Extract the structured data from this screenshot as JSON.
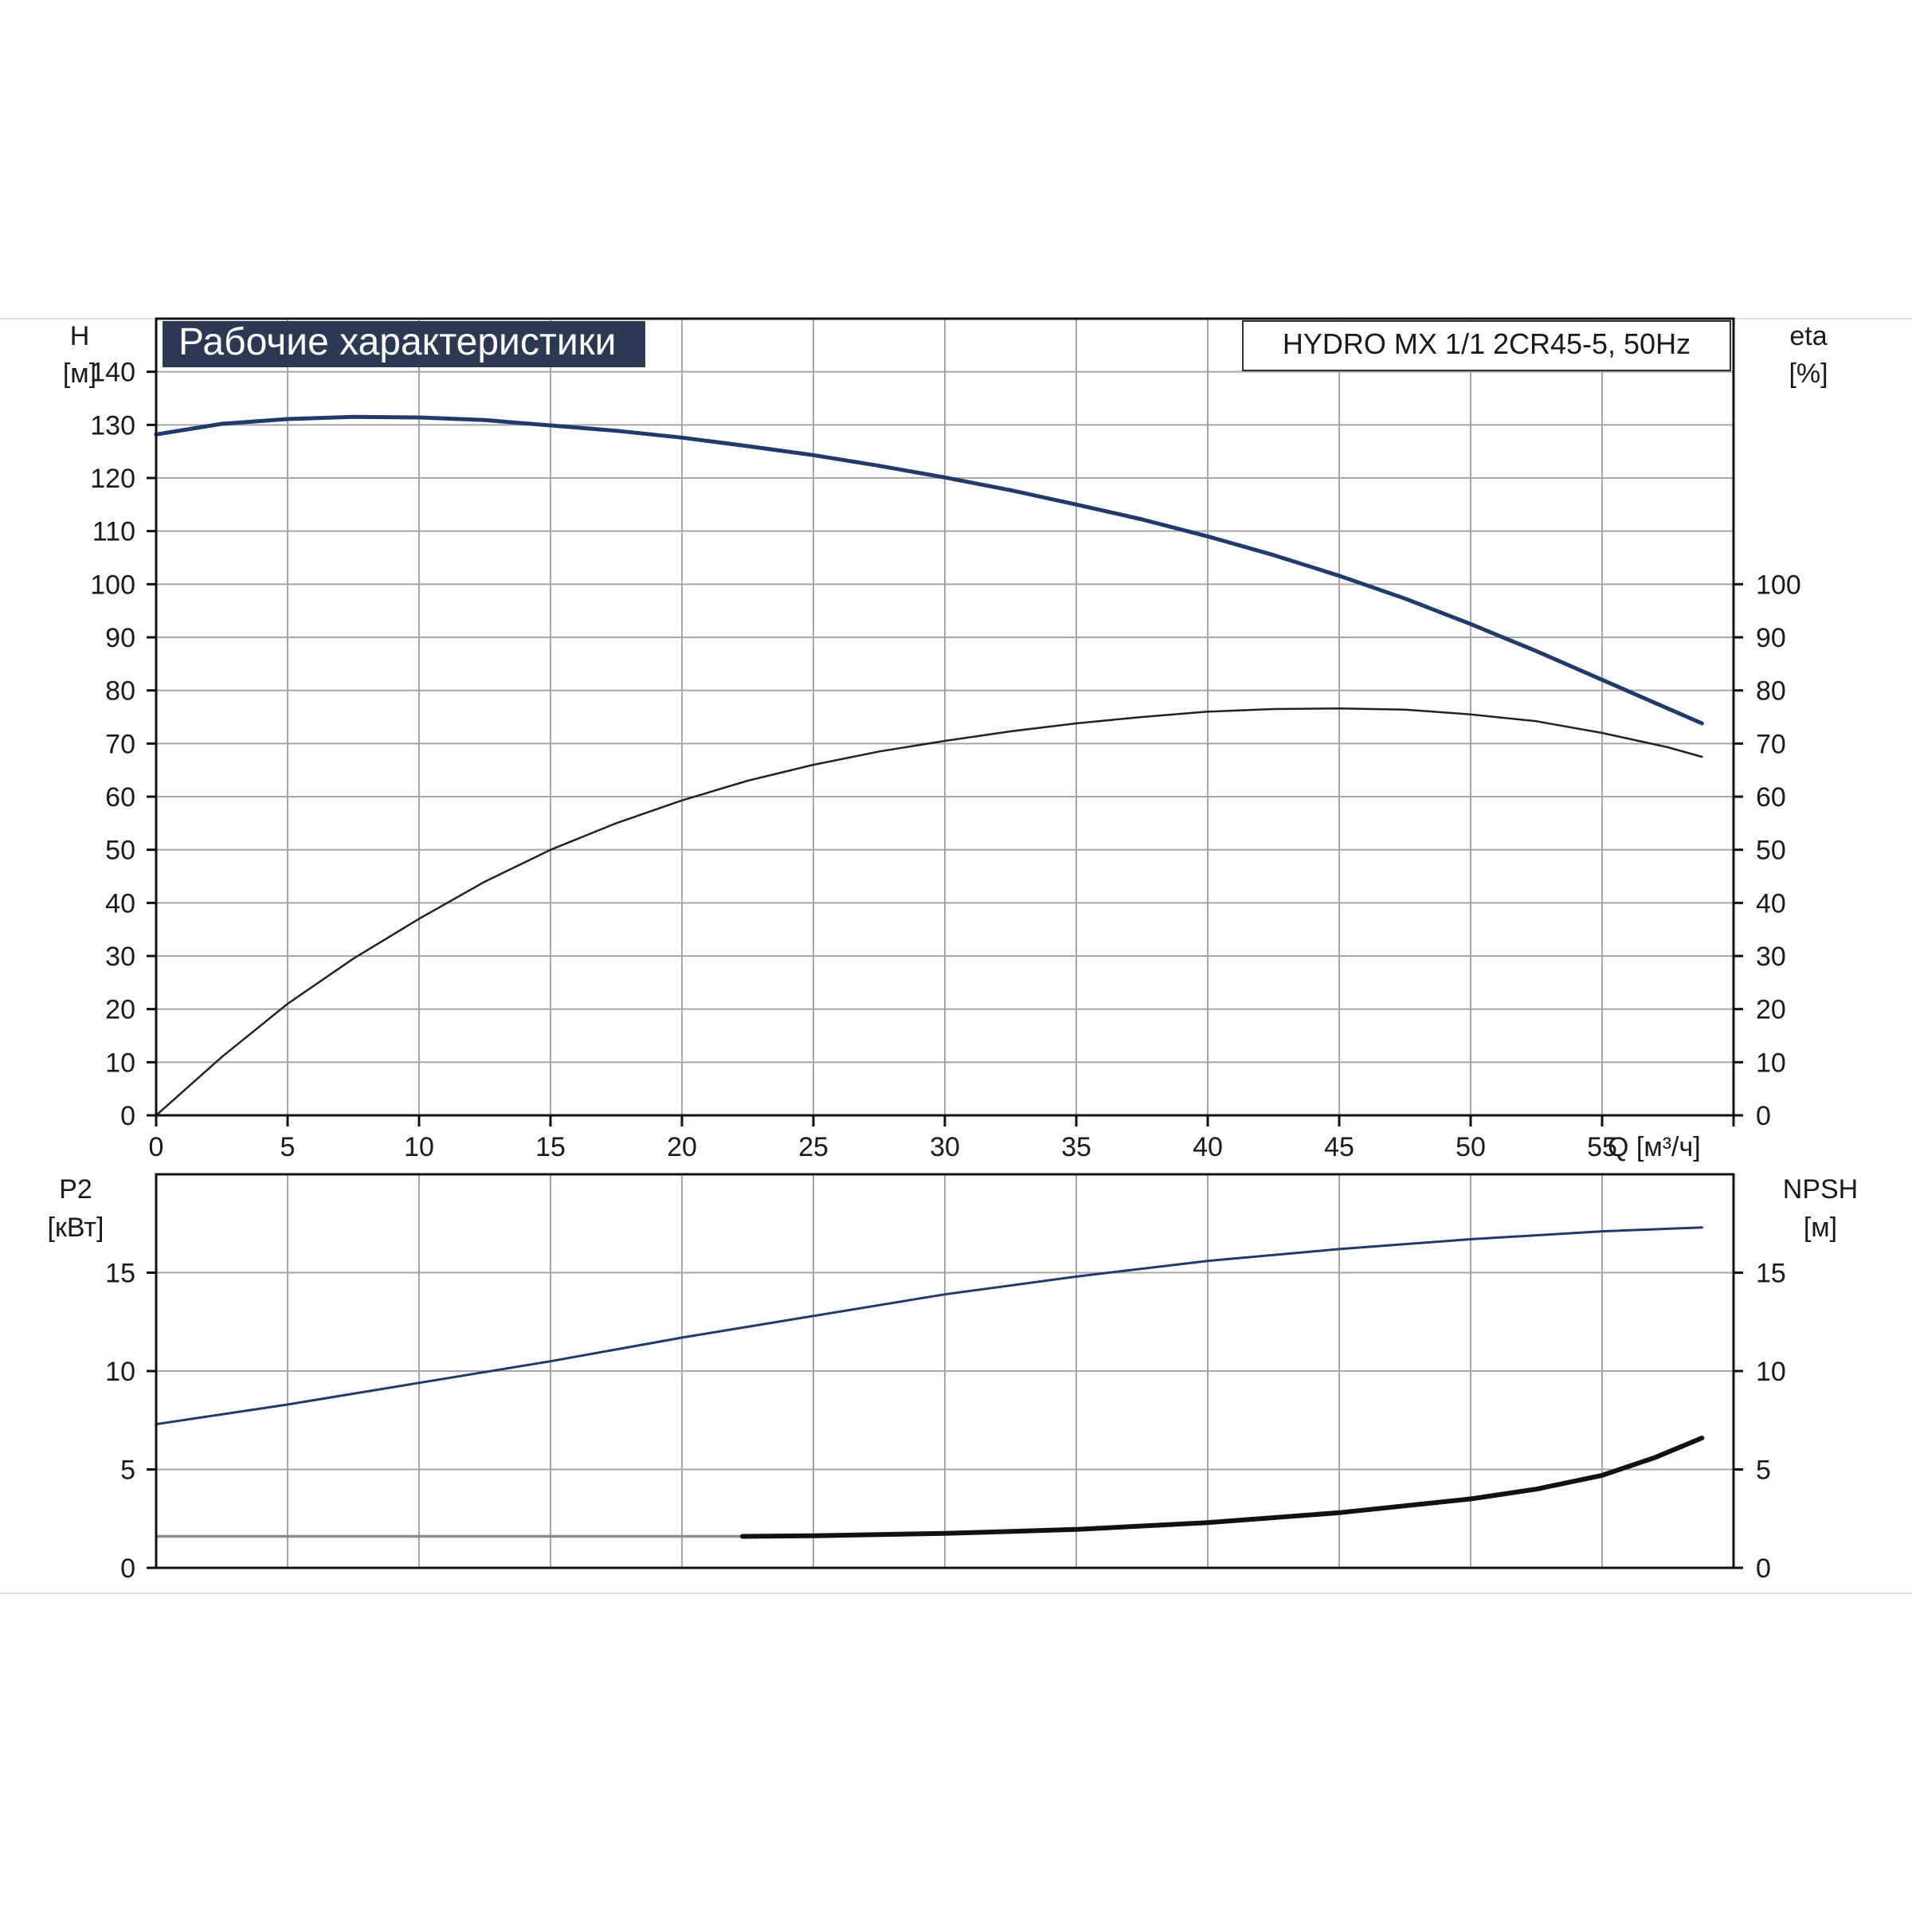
{
  "chart_data": [
    {
      "type": "line",
      "title": "Рабочие характеристики",
      "subtitle": "HYDRO MX 1/1 2CR45-5, 50Hz",
      "xlabel": "Q [м³/ч]",
      "xlim": [
        0,
        60
      ],
      "x_ticks": [
        "0",
        "5",
        "10",
        "15",
        "20",
        "25",
        "30",
        "35",
        "40",
        "45",
        "50",
        "55"
      ],
      "grid": true,
      "y_left": {
        "label": "H",
        "unit": "[м]",
        "ylim": [
          0,
          150
        ],
        "ticks": [
          "0",
          "10",
          "20",
          "30",
          "40",
          "50",
          "60",
          "70",
          "80",
          "90",
          "100",
          "110",
          "120",
          "130",
          "140"
        ]
      },
      "y_right": {
        "label": "eta",
        "unit": "[%]",
        "ylim": [
          0,
          150
        ],
        "ticks": [
          "0",
          "10",
          "20",
          "30",
          "40",
          "50",
          "60",
          "70",
          "80",
          "90",
          "100"
        ]
      },
      "series": [
        {
          "axis": "left",
          "color": "#1f3a6b",
          "x": [
            0,
            2.5,
            5,
            7.5,
            10,
            12.5,
            15,
            17.5,
            20,
            22.5,
            25,
            27.5,
            30,
            32.5,
            35,
            37.5,
            40,
            42.5,
            45,
            47.5,
            50,
            52.5,
            55,
            57.5,
            58.8
          ],
          "y": [
            128.2,
            130.2,
            131.1,
            131.5,
            131.4,
            130.9,
            129.9,
            128.9,
            127.6,
            126.0,
            124.3,
            122.3,
            120.1,
            117.7,
            115.0,
            112.2,
            109.0,
            105.5,
            101.6,
            97.3,
            92.5,
            87.4,
            82.0,
            76.6,
            73.8
          ]
        },
        {
          "axis": "right",
          "color": "#222222",
          "x": [
            0,
            2.5,
            5,
            7.5,
            10,
            12.5,
            15,
            17.5,
            20,
            22.5,
            25,
            27.5,
            30,
            32.5,
            35,
            37.5,
            40,
            42.5,
            45,
            47.5,
            50,
            52.5,
            55,
            57.5,
            58.8
          ],
          "y": [
            0,
            11,
            21,
            29.5,
            37,
            44,
            50,
            55,
            59.3,
            63,
            66,
            68.5,
            70.5,
            72.3,
            73.8,
            75,
            76,
            76.5,
            76.6,
            76.4,
            75.5,
            74.2,
            72.0,
            69.3,
            67.5
          ]
        }
      ]
    },
    {
      "type": "line",
      "xlim": [
        0,
        60
      ],
      "grid": true,
      "y_left": {
        "label": "P2",
        "unit": "[кВт]",
        "ylim": [
          0,
          20
        ],
        "ticks": [
          "0",
          "5",
          "10",
          "15"
        ]
      },
      "y_right": {
        "label": "NPSH",
        "unit": "[м]",
        "ylim": [
          0,
          20
        ],
        "ticks": [
          "0",
          "5",
          "10",
          "15"
        ]
      },
      "series": [
        {
          "axis": "left",
          "color": "#1f3a6b",
          "x": [
            0,
            5,
            10,
            15,
            20,
            25,
            30,
            35,
            40,
            45,
            50,
            55,
            58.8
          ],
          "y": [
            7.3,
            8.3,
            9.4,
            10.5,
            11.7,
            12.8,
            13.9,
            14.8,
            15.6,
            16.2,
            16.7,
            17.1,
            17.3
          ]
        },
        {
          "axis": "right",
          "color": "#8c8c8c",
          "x": [
            0,
            22.3
          ],
          "y": [
            1.6,
            1.6
          ]
        },
        {
          "axis": "right",
          "color": "#111111",
          "x": [
            22.3,
            25,
            30,
            35,
            40,
            45,
            50,
            52.5,
            55,
            57,
            58.8
          ],
          "y": [
            1.6,
            1.63,
            1.75,
            1.95,
            2.3,
            2.8,
            3.5,
            4.0,
            4.7,
            5.6,
            6.6
          ]
        }
      ]
    }
  ]
}
